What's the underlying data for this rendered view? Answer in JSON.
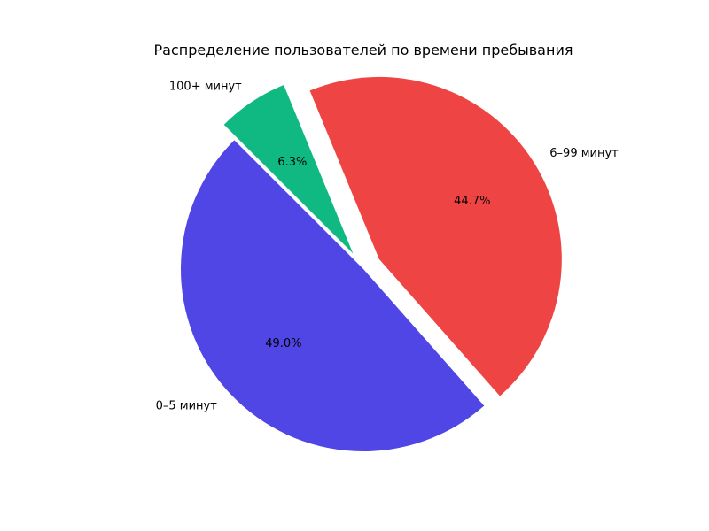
{
  "chart_data": {
    "type": "pie",
    "title": "Распределение пользователей по времени пребывания",
    "slices": [
      {
        "label": "0–5 минут",
        "value": 49.0,
        "pct_label": "49.0%",
        "color": "#4f46e5",
        "exploded": false
      },
      {
        "label": "6–99 минут",
        "value": 44.7,
        "pct_label": "44.7%",
        "color": "#ef4444",
        "exploded": true
      },
      {
        "label": "100+ минут",
        "value": 6.3,
        "pct_label": "6.3%",
        "color": "#10b981",
        "exploded": true
      }
    ],
    "start_angle_deg": 135,
    "direction": "counterclockwise"
  }
}
